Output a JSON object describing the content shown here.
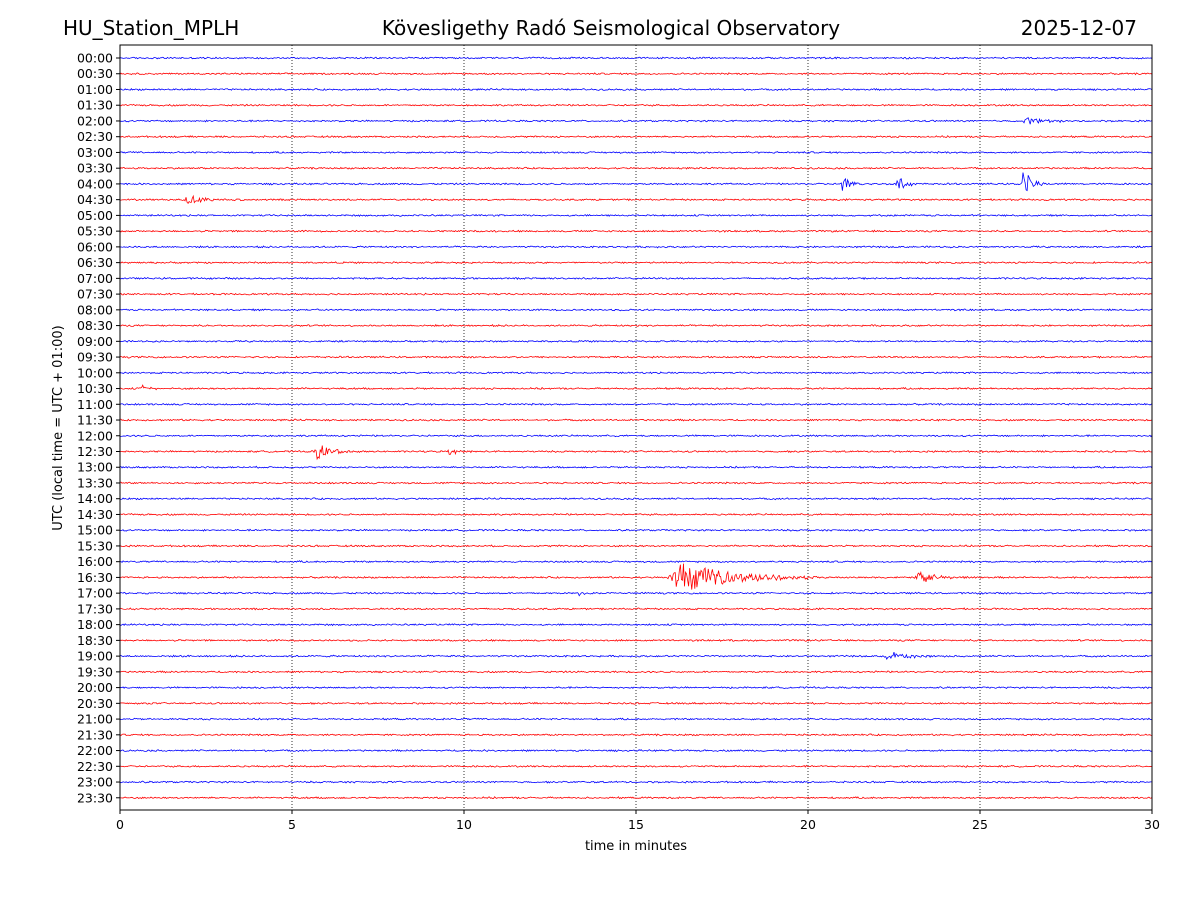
{
  "header": {
    "station": "HU_Station_MPLH",
    "observatory": "Kövesligethy Radó Seismological Observatory",
    "date": "2025-12-07"
  },
  "chart_data": {
    "type": "line",
    "title": "Kövesligethy Radó Seismological Observatory",
    "xlabel": "time in minutes",
    "ylabel": "UTC (local time = UTC + 01:00)",
    "xlim": [
      0,
      30
    ],
    "x_ticks": [
      0,
      5,
      10,
      15,
      20,
      25,
      30
    ],
    "x_tick_labels": [
      "0",
      "5",
      "10",
      "15",
      "20",
      "25",
      "30"
    ],
    "grid": "vertical-dotted",
    "colors": {
      "even_row": "#0000ff",
      "odd_row": "#ff0000",
      "grid": "#000000"
    },
    "row_labels": [
      "00:00",
      "00:30",
      "01:00",
      "01:30",
      "02:00",
      "02:30",
      "03:00",
      "03:30",
      "04:00",
      "04:30",
      "05:00",
      "05:30",
      "06:00",
      "06:30",
      "07:00",
      "07:30",
      "08:00",
      "08:30",
      "09:00",
      "09:30",
      "10:00",
      "10:30",
      "11:00",
      "11:30",
      "12:00",
      "12:30",
      "13:00",
      "13:30",
      "14:00",
      "14:30",
      "15:00",
      "15:30",
      "16:00",
      "16:30",
      "17:00",
      "17:30",
      "18:00",
      "18:30",
      "19:00",
      "19:30",
      "20:00",
      "20:30",
      "21:00",
      "21:30",
      "22:00",
      "22:30",
      "23:00",
      "23:30"
    ],
    "noise_amplitude": 0.09,
    "events": [
      {
        "row": "02:00",
        "start_min": 26.2,
        "duration_min": 1.5,
        "peak_amplitude": 0.55
      },
      {
        "row": "04:00",
        "start_min": 20.95,
        "duration_min": 0.7,
        "peak_amplitude": 1.1
      },
      {
        "row": "04:00",
        "start_min": 22.55,
        "duration_min": 0.6,
        "peak_amplitude": 1.4
      },
      {
        "row": "04:00",
        "start_min": 26.2,
        "duration_min": 0.8,
        "peak_amplitude": 1.9
      },
      {
        "row": "04:30",
        "start_min": 1.8,
        "duration_min": 1.8,
        "peak_amplitude": 0.6
      },
      {
        "row": "10:30",
        "start_min": 0.6,
        "duration_min": 0.6,
        "peak_amplitude": 0.5
      },
      {
        "row": "12:30",
        "start_min": 5.6,
        "duration_min": 1.6,
        "peak_amplitude": 0.95
      },
      {
        "row": "12:30",
        "start_min": 9.5,
        "duration_min": 0.8,
        "peak_amplitude": 0.45
      },
      {
        "row": "16:30",
        "start_min": 15.9,
        "duration_min": 4.5,
        "peak_amplitude": 2.0
      },
      {
        "row": "16:30",
        "start_min": 23.1,
        "duration_min": 1.8,
        "peak_amplitude": 0.75
      },
      {
        "row": "17:00",
        "start_min": 13.3,
        "duration_min": 0.5,
        "peak_amplitude": 0.3
      },
      {
        "row": "19:00",
        "start_min": 22.2,
        "duration_min": 1.8,
        "peak_amplitude": 0.6
      }
    ]
  }
}
